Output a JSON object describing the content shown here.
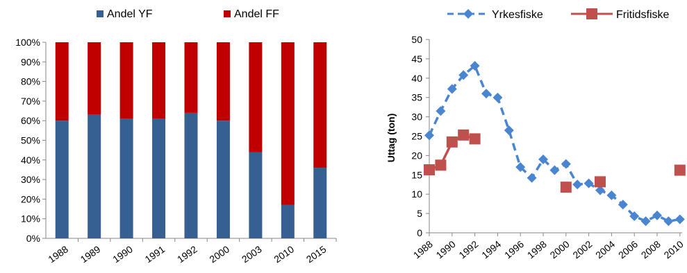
{
  "chart_data": [
    {
      "type": "bar",
      "stacked": true,
      "percent": true,
      "categories": [
        "1988",
        "1989",
        "1990",
        "1991",
        "1992",
        "2000",
        "2003",
        "2010",
        "2015"
      ],
      "series": [
        {
          "name": "Andel YF",
          "color": "#376092",
          "values": [
            60,
            63,
            61,
            61,
            64,
            60,
            44,
            17,
            36
          ]
        },
        {
          "name": "Andel FF",
          "color": "#C00000",
          "values": [
            40,
            37,
            39,
            39,
            36,
            40,
            56,
            83,
            64
          ]
        }
      ],
      "yticks": [
        "0%",
        "10%",
        "20%",
        "30%",
        "40%",
        "50%",
        "60%",
        "70%",
        "80%",
        "90%",
        "100%"
      ],
      "ylim": [
        0,
        100
      ],
      "legend": "top",
      "grid": false
    },
    {
      "type": "line",
      "ylabel": "Uttag (ton)",
      "ylim": [
        0,
        50
      ],
      "yticks": [
        "0",
        "5",
        "10",
        "15",
        "20",
        "25",
        "30",
        "35",
        "40",
        "45",
        "50"
      ],
      "xlim": [
        1988,
        2011
      ],
      "xticks": [
        "1988",
        "1990",
        "1992",
        "1994",
        "1996",
        "1998",
        "2000",
        "2002",
        "2004",
        "2006",
        "2008",
        "2010"
      ],
      "legend": "top",
      "grid": false,
      "series": [
        {
          "name": "Yrkesfiske",
          "color": "#4A86CF",
          "style": "dashed",
          "marker": "diamond",
          "x": [
            1988,
            1989,
            1990,
            1991,
            1992,
            1993,
            1994,
            1995,
            1996,
            1997,
            1998,
            1999,
            2000,
            2001,
            2002,
            2003,
            2004,
            2005,
            2006,
            2007,
            2008,
            2009,
            2010
          ],
          "y": [
            25.2,
            31.5,
            37.2,
            40.8,
            43.2,
            36.0,
            35.0,
            26.5,
            17.0,
            14.2,
            19.0,
            16.2,
            17.8,
            12.5,
            12.8,
            11.0,
            9.7,
            7.3,
            4.3,
            3.0,
            4.5,
            3.0,
            3.5
          ]
        },
        {
          "name": "Fritidsfiske",
          "color": "#C0504D",
          "style": "solid",
          "marker": "square",
          "x": [
            1988,
            1989,
            1990,
            1991,
            1992,
            2000,
            2003,
            2010
          ],
          "y": [
            16.3,
            17.5,
            23.5,
            25.3,
            24.3,
            11.8,
            13.2,
            16.2
          ],
          "segments": [
            [
              0,
              4
            ]
          ]
        }
      ]
    }
  ]
}
